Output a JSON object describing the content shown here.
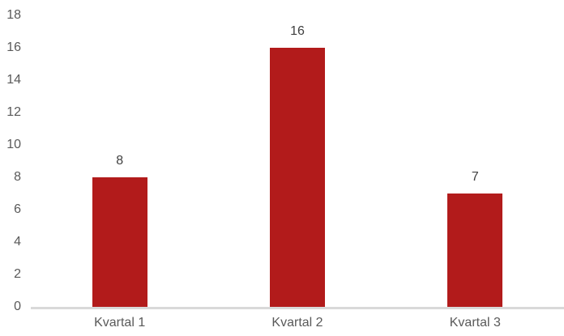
{
  "chart_data": {
    "type": "bar",
    "title": "",
    "xlabel": "",
    "ylabel": "",
    "categories": [
      "Kvartal 1",
      "Kvartal 2",
      "Kvartal 3"
    ],
    "values": [
      8,
      16,
      7
    ],
    "data_labels": [
      "8",
      "16",
      "7"
    ],
    "ylim": [
      0,
      18
    ],
    "yticks": [
      "0",
      "2",
      "4",
      "6",
      "8",
      "10",
      "12",
      "14",
      "16",
      "18"
    ],
    "grid": false,
    "legend": false,
    "colors": {
      "bar": "#b21b1b",
      "axis_line": "#d9d9d9",
      "tick_label": "#595959",
      "category_label": "#595959",
      "data_label": "#404040",
      "background": "#ffffff"
    }
  }
}
